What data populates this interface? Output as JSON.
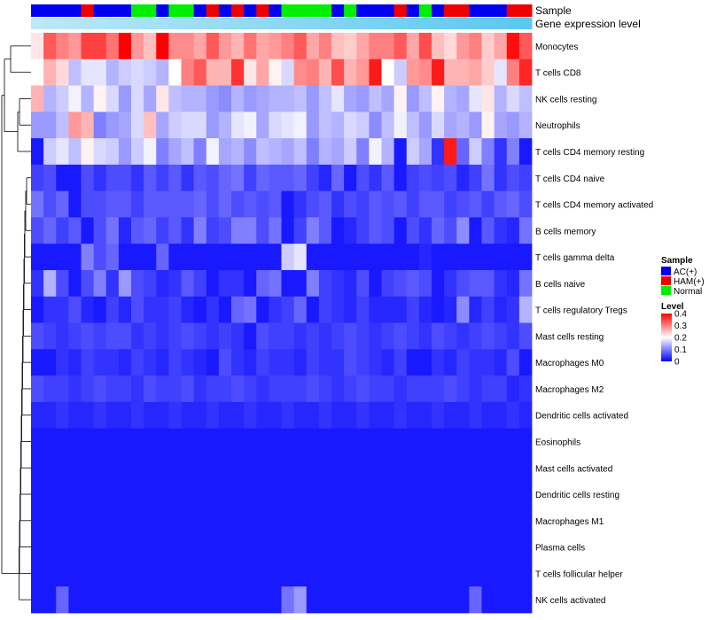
{
  "chart_data": {
    "type": "heatmap",
    "title": "",
    "annotation_tracks": [
      "Sample",
      "Gene expression level"
    ],
    "legend": {
      "sample_title": "Sample",
      "sample_entries": [
        {
          "label": "AC(+)",
          "color": "#0000EE"
        },
        {
          "label": "HAM(+)",
          "color": "#EE0000"
        },
        {
          "label": "Normal",
          "color": "#00EE00"
        }
      ],
      "level_title": "Level",
      "level_ticks": [
        "0.4",
        "0.3",
        "0.2",
        "0.1",
        "0"
      ],
      "level_range": [
        0,
        0.4
      ]
    },
    "colors": {
      "low": "#0000FF",
      "mid": "#FFFFFF",
      "high": "#FF0000",
      "AC": "#0000EE",
      "HAM": "#EE0000",
      "Normal": "#00EE00",
      "expr_light": "#BDE8F8",
      "expr_dark": "#5BC8F0"
    },
    "sample_groups": [
      "A",
      "A",
      "A",
      "A",
      "H",
      "A",
      "A",
      "A",
      "N",
      "N",
      "A",
      "N",
      "N",
      "A",
      "H",
      "A",
      "H",
      "A",
      "H",
      "A",
      "N",
      "N",
      "N",
      "N",
      "A",
      "N",
      "A",
      "A",
      "A",
      "H",
      "A",
      "N",
      "A",
      "H",
      "H",
      "A",
      "A",
      "A",
      "H",
      "H"
    ],
    "rows": [
      "Monocytes",
      "T cells CD8",
      "NK cells resting",
      "Neutrophils",
      "T cells CD4 memory resting",
      "T cells CD4 naive",
      "T cells CD4 memory activated",
      "B cells memory",
      "T cells gamma delta",
      "B cells naive",
      "T cells regulatory  Tregs",
      "Mast cells resting",
      "Macrophages M0",
      "Macrophages M2",
      "Dendritic cells activated",
      "Eosinophils",
      "Mast cells activated",
      "Dendritic cells resting",
      "Macrophages M1",
      "Plasma cells",
      "T cells follicular helper",
      "NK cells activated"
    ],
    "values": [
      [
        0.22,
        0.33,
        0.3,
        0.28,
        0.35,
        0.35,
        0.31,
        0.4,
        0.28,
        0.25,
        0.4,
        0.29,
        0.29,
        0.27,
        0.33,
        0.28,
        0.26,
        0.31,
        0.27,
        0.28,
        0.3,
        0.33,
        0.27,
        0.3,
        0.25,
        0.24,
        0.27,
        0.3,
        0.3,
        0.33,
        0.27,
        0.34,
        0.25,
        0.23,
        0.28,
        0.3,
        0.24,
        0.27,
        0.39,
        0.33
      ],
      [
        0.2,
        0.26,
        0.23,
        0.15,
        0.18,
        0.18,
        0.14,
        0.16,
        0.17,
        0.16,
        0.14,
        0.2,
        0.3,
        0.33,
        0.26,
        0.26,
        0.36,
        0.22,
        0.27,
        0.21,
        0.17,
        0.29,
        0.3,
        0.26,
        0.34,
        0.26,
        0.28,
        0.38,
        0.2,
        0.16,
        0.28,
        0.29,
        0.38,
        0.26,
        0.26,
        0.27,
        0.24,
        0.18,
        0.3,
        0.37
      ],
      [
        0.26,
        0.14,
        0.16,
        0.19,
        0.14,
        0.21,
        0.17,
        0.12,
        0.17,
        0.13,
        0.22,
        0.15,
        0.14,
        0.14,
        0.12,
        0.11,
        0.14,
        0.12,
        0.13,
        0.14,
        0.14,
        0.15,
        0.12,
        0.15,
        0.18,
        0.13,
        0.12,
        0.15,
        0.13,
        0.21,
        0.12,
        0.15,
        0.21,
        0.14,
        0.13,
        0.18,
        0.22,
        0.14,
        0.17,
        0.15
      ],
      [
        0.12,
        0.12,
        0.15,
        0.28,
        0.26,
        0.1,
        0.12,
        0.13,
        0.17,
        0.25,
        0.13,
        0.16,
        0.17,
        0.17,
        0.12,
        0.14,
        0.18,
        0.19,
        0.13,
        0.17,
        0.18,
        0.19,
        0.12,
        0.15,
        0.14,
        0.17,
        0.16,
        0.11,
        0.15,
        0.19,
        0.15,
        0.12,
        0.17,
        0.13,
        0.14,
        0.12,
        0.21,
        0.13,
        0.12,
        0.14
      ],
      [
        0.02,
        0.16,
        0.18,
        0.15,
        0.21,
        0.17,
        0.16,
        0.12,
        0.16,
        0.19,
        0.1,
        0.13,
        0.15,
        0.1,
        0.19,
        0.13,
        0.14,
        0.11,
        0.15,
        0.14,
        0.13,
        0.15,
        0.1,
        0.14,
        0.13,
        0.16,
        0.1,
        0.19,
        0.14,
        0.02,
        0.16,
        0.13,
        0.04,
        0.38,
        0.08,
        0.16,
        0.1,
        0.04,
        0.1,
        0.02
      ],
      [
        0.05,
        0.06,
        0.02,
        0.02,
        0.06,
        0.04,
        0.06,
        0.06,
        0.04,
        0.07,
        0.05,
        0.07,
        0.04,
        0.07,
        0.06,
        0.08,
        0.09,
        0.05,
        0.08,
        0.07,
        0.07,
        0.08,
        0.05,
        0.03,
        0.08,
        0.02,
        0.06,
        0.04,
        0.07,
        0.02,
        0.05,
        0.06,
        0.05,
        0.06,
        0.03,
        0.05,
        0.09,
        0.04,
        0.06,
        0.05
      ],
      [
        0.09,
        0.06,
        0.08,
        0.02,
        0.06,
        0.06,
        0.07,
        0.07,
        0.05,
        0.07,
        0.07,
        0.07,
        0.07,
        0.08,
        0.06,
        0.08,
        0.06,
        0.07,
        0.06,
        0.07,
        0.02,
        0.04,
        0.06,
        0.07,
        0.04,
        0.06,
        0.05,
        0.07,
        0.06,
        0.07,
        0.05,
        0.07,
        0.07,
        0.05,
        0.06,
        0.07,
        0.05,
        0.07,
        0.08,
        0.06
      ],
      [
        0.06,
        0.08,
        0.05,
        0.07,
        0.02,
        0.06,
        0.09,
        0.03,
        0.07,
        0.08,
        0.05,
        0.07,
        0.04,
        0.1,
        0.05,
        0.06,
        0.1,
        0.1,
        0.06,
        0.09,
        0.02,
        0.05,
        0.1,
        0.07,
        0.02,
        0.03,
        0.05,
        0.07,
        0.06,
        0.02,
        0.06,
        0.04,
        0.08,
        0.06,
        0.11,
        0.02,
        0.07,
        0.04,
        0.03,
        0.09
      ],
      [
        0.02,
        0.02,
        0.02,
        0.02,
        0.1,
        0.06,
        0.08,
        0.02,
        0.02,
        0.02,
        0.08,
        0.02,
        0.02,
        0.02,
        0.02,
        0.02,
        0.02,
        0.02,
        0.02,
        0.02,
        0.16,
        0.18,
        0.02,
        0.02,
        0.02,
        0.02,
        0.02,
        0.02,
        0.02,
        0.02,
        0.02,
        0.03,
        0.02,
        0.02,
        0.02,
        0.02,
        0.02,
        0.02,
        0.02,
        0.02
      ],
      [
        0.04,
        0.14,
        0.06,
        0.02,
        0.06,
        0.1,
        0.04,
        0.12,
        0.06,
        0.05,
        0.03,
        0.04,
        0.07,
        0.05,
        0.02,
        0.04,
        0.04,
        0.02,
        0.08,
        0.09,
        0.02,
        0.02,
        0.1,
        0.05,
        0.04,
        0.03,
        0.06,
        0.02,
        0.05,
        0.06,
        0.07,
        0.06,
        0.02,
        0.04,
        0.06,
        0.07,
        0.07,
        0.04,
        0.03,
        0.09
      ],
      [
        0.02,
        0.04,
        0.04,
        0.06,
        0.03,
        0.02,
        0.05,
        0.03,
        0.06,
        0.04,
        0.04,
        0.05,
        0.03,
        0.02,
        0.04,
        0.02,
        0.08,
        0.09,
        0.02,
        0.04,
        0.05,
        0.08,
        0.02,
        0.05,
        0.04,
        0.03,
        0.05,
        0.03,
        0.03,
        0.03,
        0.05,
        0.03,
        0.02,
        0.03,
        0.11,
        0.03,
        0.05,
        0.03,
        0.04,
        0.14
      ],
      [
        0.06,
        0.05,
        0.04,
        0.05,
        0.06,
        0.05,
        0.06,
        0.06,
        0.04,
        0.05,
        0.04,
        0.05,
        0.06,
        0.05,
        0.04,
        0.05,
        0.04,
        0.02,
        0.06,
        0.05,
        0.05,
        0.04,
        0.05,
        0.04,
        0.05,
        0.06,
        0.05,
        0.04,
        0.05,
        0.06,
        0.05,
        0.04,
        0.06,
        0.05,
        0.04,
        0.05,
        0.06,
        0.05,
        0.04,
        0.06
      ],
      [
        0.02,
        0.02,
        0.04,
        0.03,
        0.05,
        0.04,
        0.04,
        0.03,
        0.05,
        0.04,
        0.03,
        0.05,
        0.04,
        0.03,
        0.02,
        0.06,
        0.04,
        0.03,
        0.05,
        0.04,
        0.04,
        0.03,
        0.05,
        0.04,
        0.04,
        0.06,
        0.05,
        0.04,
        0.03,
        0.05,
        0.02,
        0.02,
        0.04,
        0.03,
        0.05,
        0.04,
        0.04,
        0.03,
        0.06,
        0.02
      ],
      [
        0.06,
        0.05,
        0.05,
        0.04,
        0.05,
        0.06,
        0.05,
        0.05,
        0.04,
        0.06,
        0.05,
        0.05,
        0.06,
        0.04,
        0.05,
        0.05,
        0.06,
        0.05,
        0.04,
        0.05,
        0.05,
        0.05,
        0.06,
        0.05,
        0.04,
        0.05,
        0.06,
        0.05,
        0.05,
        0.04,
        0.05,
        0.05,
        0.05,
        0.06,
        0.05,
        0.04,
        0.05,
        0.05,
        0.03,
        0.04
      ],
      [
        0.03,
        0.03,
        0.04,
        0.03,
        0.03,
        0.04,
        0.03,
        0.03,
        0.04,
        0.03,
        0.03,
        0.04,
        0.03,
        0.03,
        0.04,
        0.03,
        0.03,
        0.04,
        0.03,
        0.03,
        0.04,
        0.03,
        0.03,
        0.04,
        0.03,
        0.03,
        0.04,
        0.03,
        0.03,
        0.04,
        0.03,
        0.03,
        0.04,
        0.03,
        0.03,
        0.04,
        0.03,
        0.03,
        0.04,
        0.03
      ],
      [
        0.02,
        0.02,
        0.02,
        0.02,
        0.02,
        0.02,
        0.02,
        0.02,
        0.02,
        0.02,
        0.02,
        0.02,
        0.02,
        0.02,
        0.02,
        0.02,
        0.02,
        0.02,
        0.02,
        0.02,
        0.02,
        0.02,
        0.02,
        0.02,
        0.02,
        0.02,
        0.02,
        0.02,
        0.02,
        0.02,
        0.02,
        0.02,
        0.02,
        0.02,
        0.02,
        0.02,
        0.02,
        0.02,
        0.02,
        0.02
      ],
      [
        0.02,
        0.02,
        0.02,
        0.02,
        0.02,
        0.02,
        0.02,
        0.02,
        0.02,
        0.02,
        0.02,
        0.02,
        0.02,
        0.02,
        0.02,
        0.02,
        0.02,
        0.02,
        0.02,
        0.02,
        0.02,
        0.02,
        0.02,
        0.02,
        0.02,
        0.02,
        0.02,
        0.02,
        0.02,
        0.02,
        0.02,
        0.02,
        0.02,
        0.02,
        0.02,
        0.02,
        0.02,
        0.02,
        0.02,
        0.02
      ],
      [
        0.02,
        0.02,
        0.02,
        0.02,
        0.02,
        0.02,
        0.02,
        0.02,
        0.02,
        0.02,
        0.02,
        0.02,
        0.02,
        0.02,
        0.02,
        0.02,
        0.02,
        0.02,
        0.02,
        0.02,
        0.02,
        0.02,
        0.02,
        0.02,
        0.02,
        0.02,
        0.02,
        0.02,
        0.02,
        0.02,
        0.02,
        0.02,
        0.02,
        0.02,
        0.02,
        0.02,
        0.02,
        0.02,
        0.02,
        0.02
      ],
      [
        0.02,
        0.02,
        0.02,
        0.02,
        0.02,
        0.02,
        0.02,
        0.02,
        0.02,
        0.02,
        0.02,
        0.02,
        0.02,
        0.02,
        0.02,
        0.02,
        0.02,
        0.02,
        0.02,
        0.02,
        0.02,
        0.02,
        0.02,
        0.02,
        0.02,
        0.02,
        0.02,
        0.02,
        0.02,
        0.02,
        0.02,
        0.02,
        0.02,
        0.02,
        0.02,
        0.02,
        0.02,
        0.02,
        0.02,
        0.02
      ],
      [
        0.02,
        0.02,
        0.02,
        0.02,
        0.02,
        0.02,
        0.02,
        0.02,
        0.02,
        0.02,
        0.02,
        0.02,
        0.02,
        0.02,
        0.02,
        0.02,
        0.02,
        0.02,
        0.02,
        0.02,
        0.02,
        0.02,
        0.02,
        0.02,
        0.02,
        0.02,
        0.02,
        0.02,
        0.02,
        0.02,
        0.02,
        0.02,
        0.02,
        0.02,
        0.02,
        0.02,
        0.02,
        0.02,
        0.02,
        0.02
      ],
      [
        0.02,
        0.02,
        0.02,
        0.02,
        0.02,
        0.02,
        0.02,
        0.02,
        0.02,
        0.02,
        0.02,
        0.02,
        0.02,
        0.02,
        0.02,
        0.02,
        0.02,
        0.02,
        0.02,
        0.02,
        0.02,
        0.02,
        0.02,
        0.02,
        0.02,
        0.02,
        0.02,
        0.02,
        0.02,
        0.02,
        0.02,
        0.02,
        0.02,
        0.02,
        0.02,
        0.02,
        0.02,
        0.02,
        0.02,
        0.02
      ],
      [
        0.02,
        0.02,
        0.08,
        0.02,
        0.02,
        0.02,
        0.02,
        0.02,
        0.02,
        0.02,
        0.02,
        0.02,
        0.02,
        0.02,
        0.02,
        0.02,
        0.02,
        0.02,
        0.02,
        0.02,
        0.09,
        0.12,
        0.02,
        0.02,
        0.02,
        0.02,
        0.02,
        0.02,
        0.02,
        0.02,
        0.02,
        0.02,
        0.02,
        0.02,
        0.02,
        0.08,
        0.02,
        0.02,
        0.02,
        0.02
      ]
    ]
  }
}
